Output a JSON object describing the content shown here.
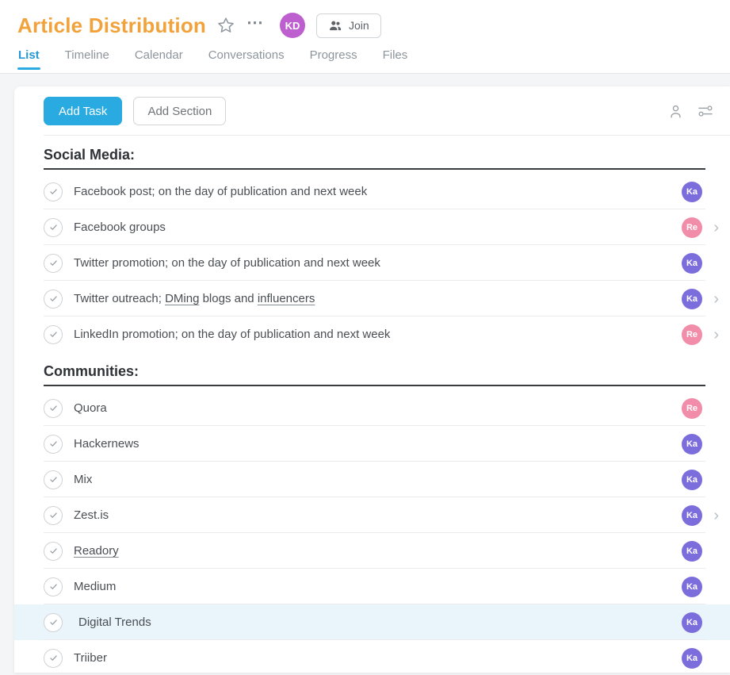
{
  "theme": {
    "title_color": "#F2A23B",
    "accent_blue": "#29ABE2",
    "tab_active_color": "#2598D5",
    "highlight_row_bg": "#E9F4FB",
    "avatar_purple": "#7B6EDC",
    "avatar_pink": "#F18CA9",
    "header_avatar_purple": "#BE5FD0"
  },
  "icons": {
    "star": "star-icon (outline star)",
    "more_glyph": "⋯",
    "join": "people-icon",
    "assignee_filter": "person-icon",
    "view_options": "sliders-icon",
    "task_check": "checkmark-icon",
    "chevron_glyph": "›"
  },
  "header": {
    "title": "Article Distribution",
    "user_avatar": {
      "initials": "KD",
      "color": "#BE5FD0"
    },
    "join_button": {
      "label": "Join"
    }
  },
  "tabs": [
    {
      "label": "List",
      "active": true
    },
    {
      "label": "Timeline",
      "active": false
    },
    {
      "label": "Calendar",
      "active": false
    },
    {
      "label": "Conversations",
      "active": false
    },
    {
      "label": "Progress",
      "active": false
    },
    {
      "label": "Files",
      "active": false
    }
  ],
  "toolbar": {
    "add_task_label": "Add Task",
    "add_section_label": "Add Section"
  },
  "sections": [
    {
      "title": "Social Media:",
      "tasks": [
        {
          "title": [
            {
              "t": "Facebook post; on the day of publication and next week"
            }
          ],
          "assignee": {
            "initials": "Ka",
            "color": "#7B6EDC"
          },
          "chevron": false,
          "highlighted": false
        },
        {
          "title": [
            {
              "t": "Facebook groups"
            }
          ],
          "assignee": {
            "initials": "Re",
            "color": "#F18CA9"
          },
          "chevron": true,
          "highlighted": false
        },
        {
          "title": [
            {
              "t": "Twitter promotion; on the day of publication and next week"
            }
          ],
          "assignee": {
            "initials": "Ka",
            "color": "#7B6EDC"
          },
          "chevron": false,
          "highlighted": false
        },
        {
          "title": [
            {
              "t": "Twitter outreach; "
            },
            {
              "t": "DMing",
              "misspelled": true
            },
            {
              "t": " blogs and "
            },
            {
              "t": "influencers",
              "misspelled": true
            }
          ],
          "assignee": {
            "initials": "Ka",
            "color": "#7B6EDC"
          },
          "chevron": true,
          "highlighted": false
        },
        {
          "title": [
            {
              "t": "LinkedIn promotion; on the day of publication and next week"
            }
          ],
          "assignee": {
            "initials": "Re",
            "color": "#F18CA9"
          },
          "chevron": true,
          "highlighted": false
        }
      ]
    },
    {
      "title": "Communities:",
      "tasks": [
        {
          "title": [
            {
              "t": "Quora"
            }
          ],
          "assignee": {
            "initials": "Re",
            "color": "#F18CA9"
          },
          "chevron": false,
          "highlighted": false
        },
        {
          "title": [
            {
              "t": "Hackernews"
            }
          ],
          "assignee": {
            "initials": "Ka",
            "color": "#7B6EDC"
          },
          "chevron": false,
          "highlighted": false
        },
        {
          "title": [
            {
              "t": "Mix"
            }
          ],
          "assignee": {
            "initials": "Ka",
            "color": "#7B6EDC"
          },
          "chevron": false,
          "highlighted": false
        },
        {
          "title": [
            {
              "t": "Zest.is"
            }
          ],
          "assignee": {
            "initials": "Ka",
            "color": "#7B6EDC"
          },
          "chevron": true,
          "highlighted": false
        },
        {
          "title": [
            {
              "t": "Readory",
              "misspelled": true
            }
          ],
          "assignee": {
            "initials": "Ka",
            "color": "#7B6EDC"
          },
          "chevron": false,
          "highlighted": false
        },
        {
          "title": [
            {
              "t": "Medium"
            }
          ],
          "assignee": {
            "initials": "Ka",
            "color": "#7B6EDC"
          },
          "chevron": false,
          "highlighted": false
        },
        {
          "title": [
            {
              "t": "Digital Trends"
            }
          ],
          "assignee": {
            "initials": "Ka",
            "color": "#7B6EDC"
          },
          "chevron": false,
          "highlighted": true
        },
        {
          "title": [
            {
              "t": "Triiber"
            }
          ],
          "assignee": {
            "initials": "Ka",
            "color": "#7B6EDC"
          },
          "chevron": false,
          "highlighted": false
        }
      ]
    }
  ]
}
